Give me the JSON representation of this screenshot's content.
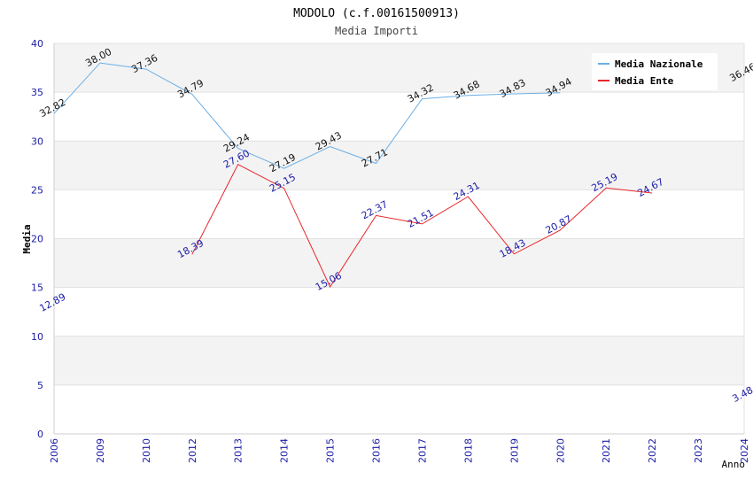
{
  "chart_data": {
    "type": "line",
    "title": "MODOLO (c.f.00161500913)",
    "subtitle": "Media Importi",
    "xlabel": "Anno",
    "ylabel": "Media",
    "categories": [
      "2006",
      "2009",
      "2010",
      "2012",
      "2013",
      "2014",
      "2015",
      "2016",
      "2017",
      "2018",
      "2019",
      "2020",
      "2021",
      "2022",
      "2023",
      "2024"
    ],
    "ylim": [
      0,
      40
    ],
    "yticks": [
      0,
      5,
      10,
      15,
      20,
      25,
      30,
      35,
      40
    ],
    "grid": true,
    "legend_position": "top-right",
    "series": [
      {
        "name": "Media Nazionale",
        "color": "#6aaee6",
        "values": [
          32.82,
          38.0,
          37.36,
          34.79,
          29.24,
          27.19,
          29.43,
          27.71,
          34.32,
          34.68,
          34.83,
          34.94,
          null,
          null,
          null,
          36.46
        ],
        "labels": [
          "32.82",
          "38.00",
          "37.36",
          "34.79",
          "29.24",
          "27.19",
          "29.43",
          "27.71",
          "34.32",
          "34.68",
          "34.83",
          "34.94",
          "",
          "",
          "",
          "36.46"
        ]
      },
      {
        "name": "Media Ente",
        "color": "#e8262a",
        "values": [
          12.89,
          null,
          null,
          18.39,
          27.6,
          25.15,
          15.06,
          22.37,
          21.51,
          24.31,
          18.43,
          20.87,
          25.19,
          24.67,
          null,
          3.48
        ],
        "labels": [
          "12.89",
          "",
          "",
          "18.39",
          "27.60",
          "25.15",
          "15.06",
          "22.37",
          "21.51",
          "24.31",
          "18.43",
          "20.87",
          "25.19",
          "24.67",
          "",
          "3.48"
        ]
      }
    ]
  }
}
